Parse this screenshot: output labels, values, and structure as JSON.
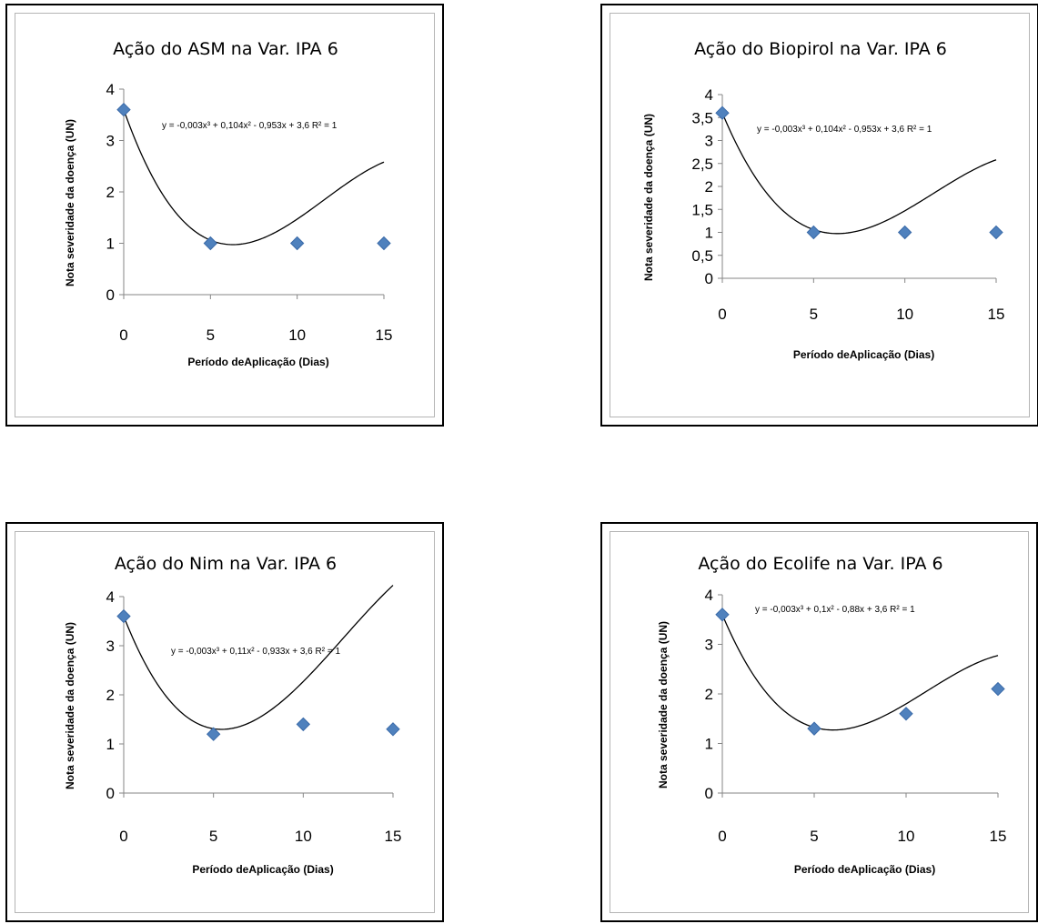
{
  "colors": {
    "marker": "#4f81bd",
    "marker_edge": "#3a6aa8",
    "curve": "#000000",
    "axis": "#868686"
  },
  "chart_data": [
    {
      "type": "scatter",
      "title": "Ação do ASM na Var. IPA 6",
      "xlabel": "Período deAplicação (Dias)",
      "ylabel": "Nota severidade da doença (UN)",
      "x": [
        0,
        5,
        10,
        15
      ],
      "y": [
        3.6,
        1,
        1,
        1
      ],
      "xlim": [
        0,
        15
      ],
      "ylim": [
        0,
        4
      ],
      "xticks": [
        {
          "v": 0,
          "label": "0"
        },
        {
          "v": 5,
          "label": "5"
        },
        {
          "v": 10,
          "label": "10"
        },
        {
          "v": 15,
          "label": "15"
        }
      ],
      "yticks": [
        {
          "v": 0,
          "label": "0"
        },
        {
          "v": 1,
          "label": "1"
        },
        {
          "v": 2,
          "label": "2"
        },
        {
          "v": 3,
          "label": "3"
        },
        {
          "v": 4,
          "label": "4"
        }
      ],
      "trendline": {
        "type": "polynomial",
        "degree": 3,
        "coefficients": [
          -0.003,
          0.104,
          -0.953,
          3.6
        ]
      },
      "equation_label": "y = -0,003x³ + 0,104x² - 0,953x + 3,6  R² = 1"
    },
    {
      "type": "scatter",
      "title": "Ação do Biopirol na Var. IPA 6",
      "xlabel": "Período deAplicação (Dias)",
      "ylabel": "Nota severidade da doença (UN)",
      "x": [
        0,
        5,
        10,
        15
      ],
      "y": [
        3.6,
        1,
        1,
        1
      ],
      "xlim": [
        0,
        15
      ],
      "ylim": [
        0,
        4
      ],
      "xticks": [
        {
          "v": 0,
          "label": "0"
        },
        {
          "v": 5,
          "label": "5"
        },
        {
          "v": 10,
          "label": "10"
        },
        {
          "v": 15,
          "label": "15"
        }
      ],
      "yticks": [
        {
          "v": 0,
          "label": "0"
        },
        {
          "v": 0.5,
          "label": "0,5"
        },
        {
          "v": 1,
          "label": "1"
        },
        {
          "v": 1.5,
          "label": "1,5"
        },
        {
          "v": 2,
          "label": "2"
        },
        {
          "v": 2.5,
          "label": "2,5"
        },
        {
          "v": 3,
          "label": "3"
        },
        {
          "v": 3.5,
          "label": "3,5"
        },
        {
          "v": 4,
          "label": "4"
        }
      ],
      "trendline": {
        "type": "polynomial",
        "degree": 3,
        "coefficients": [
          -0.003,
          0.104,
          -0.953,
          3.6
        ]
      },
      "equation_label": "y = -0,003x³ + 0,104x² - 0,953x + 3,6 R² = 1"
    },
    {
      "type": "scatter",
      "title": "Ação do Nim na Var. IPA 6",
      "xlabel": "Período deAplicação (Dias)",
      "ylabel": "Nota severidade da doença (UN)",
      "x": [
        0,
        5,
        10,
        15
      ],
      "y": [
        3.6,
        1.2,
        1.4,
        1.3
      ],
      "xlim": [
        0,
        15
      ],
      "ylim": [
        0,
        4
      ],
      "xticks": [
        {
          "v": 0,
          "label": "0"
        },
        {
          "v": 5,
          "label": "5"
        },
        {
          "v": 10,
          "label": "10"
        },
        {
          "v": 15,
          "label": "15"
        }
      ],
      "yticks": [
        {
          "v": 0,
          "label": "0"
        },
        {
          "v": 1,
          "label": "1"
        },
        {
          "v": 2,
          "label": "2"
        },
        {
          "v": 3,
          "label": "3"
        },
        {
          "v": 4,
          "label": "4"
        }
      ],
      "trendline": {
        "type": "polynomial",
        "degree": 3,
        "coefficients": [
          -0.003,
          0.11,
          -0.933,
          3.6
        ]
      },
      "equation_label": "y = -0,003x³ + 0,11x² - 0,933x + 3,6 R² = 1"
    },
    {
      "type": "scatter",
      "title": "Ação do Ecolife na Var. IPA 6",
      "xlabel": "Período deAplicação (Dias)",
      "ylabel": "Nota severidade da doença (UN)",
      "x": [
        0,
        5,
        10,
        15
      ],
      "y": [
        3.6,
        1.3,
        1.6,
        2.1
      ],
      "xlim": [
        0,
        15
      ],
      "ylim": [
        0,
        4
      ],
      "xticks": [
        {
          "v": 0,
          "label": "0"
        },
        {
          "v": 5,
          "label": "5"
        },
        {
          "v": 10,
          "label": "10"
        },
        {
          "v": 15,
          "label": "15"
        }
      ],
      "yticks": [
        {
          "v": 0,
          "label": "0"
        },
        {
          "v": 1,
          "label": "1"
        },
        {
          "v": 2,
          "label": "2"
        },
        {
          "v": 3,
          "label": "3"
        },
        {
          "v": 4,
          "label": "4"
        }
      ],
      "trendline": {
        "type": "polynomial",
        "degree": 3,
        "coefficients": [
          -0.003,
          0.1,
          -0.88,
          3.6
        ]
      },
      "equation_label": "y = -0,003x³ + 0,1x² - 0,88x + 3,6 R² = 1"
    }
  ]
}
